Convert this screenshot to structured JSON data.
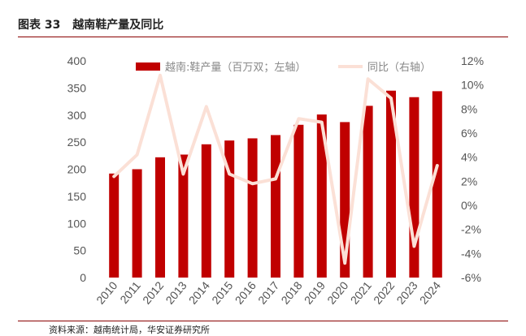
{
  "figure": {
    "label": "图表 33",
    "title": "越南鞋产量及同比",
    "source": "资料来源：越南统计局，华安证券研究所"
  },
  "chart_data": {
    "type": "bar+line",
    "title": "越南鞋产量及同比",
    "categories": [
      "2010",
      "2011",
      "2012",
      "2013",
      "2014",
      "2015",
      "2016",
      "2017",
      "2018",
      "2019",
      "2020",
      "2021",
      "2022",
      "2023",
      "2024"
    ],
    "series": [
      {
        "name": "越南:鞋产量（百万双；左轴）",
        "type": "bar",
        "axis": "left",
        "color": "#c00000",
        "values": [
          192,
          200,
          222,
          227,
          246,
          253,
          257,
          263,
          282,
          301,
          287,
          317,
          345,
          333,
          344
        ]
      },
      {
        "name": "同比（右轴）",
        "type": "line",
        "axis": "right",
        "color": "#fbe0d6",
        "values": [
          2.4,
          4.2,
          10.8,
          2.6,
          8.2,
          2.6,
          1.8,
          2.2,
          7.2,
          6.9,
          -4.8,
          10.5,
          8.9,
          -3.4,
          3.3
        ]
      }
    ],
    "y_left": {
      "min": 0,
      "max": 400,
      "step": 50,
      "ticks": [
        "0",
        "50",
        "100",
        "150",
        "200",
        "250",
        "300",
        "350",
        "400"
      ]
    },
    "y_right": {
      "min": -6,
      "max": 12,
      "step": 2,
      "ticks": [
        "-6%",
        "-4%",
        "-2%",
        "0%",
        "2%",
        "4%",
        "6%",
        "8%",
        "10%",
        "12%"
      ]
    },
    "grid": false,
    "legend": "top"
  }
}
